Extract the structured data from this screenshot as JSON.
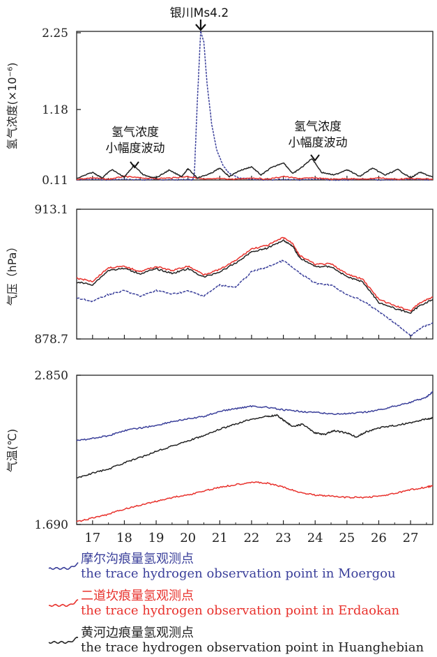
{
  "chart_data": [
    {
      "type": "line",
      "ylabel": "氢气浓度(×10⁻⁶)",
      "ylim": [
        0.11,
        2.25
      ],
      "yticks": [
        "0.11",
        "1.18",
        "2.25"
      ],
      "xlim": [
        16.5,
        27.7
      ],
      "annotations": [
        {
          "text": "银川Ms4.2",
          "x": 20.4,
          "y": 2.25
        },
        {
          "text": "氢气浓度\n小幅度波动",
          "x": 18.4,
          "y": 0.13
        },
        {
          "text": "氢气浓度\n小幅度波动",
          "x": 23.9,
          "y": 0.38
        }
      ],
      "series": [
        {
          "name": "摩尔沟痕量氢观测点",
          "color": "#3a3f9a",
          "x": [
            16.5,
            17.0,
            17.5,
            18.0,
            18.5,
            19.0,
            19.5,
            20.0,
            20.15,
            20.2,
            20.3,
            20.4,
            20.5,
            20.6,
            20.75,
            20.9,
            21.1,
            21.3,
            21.6,
            22.0,
            22.5,
            23.0,
            23.5,
            24.0,
            24.5,
            25.0,
            25.5,
            26.0,
            26.5,
            27.0,
            27.7
          ],
          "values": [
            0.11,
            0.12,
            0.11,
            0.12,
            0.11,
            0.12,
            0.11,
            0.12,
            0.11,
            0.18,
            1.3,
            2.25,
            2.1,
            1.5,
            0.9,
            0.55,
            0.32,
            0.2,
            0.14,
            0.12,
            0.11,
            0.12,
            0.11,
            0.12,
            0.11,
            0.11,
            0.12,
            0.11,
            0.11,
            0.12,
            0.11
          ]
        },
        {
          "name": "二道坎痕量氢观测点",
          "color": "#e8312c",
          "x": [
            16.5,
            17.0,
            17.5,
            18.0,
            18.5,
            19.0,
            19.5,
            20.0,
            20.5,
            21.0,
            21.5,
            22.0,
            22.5,
            23.0,
            23.5,
            24.0,
            24.5,
            25.0,
            25.5,
            26.0,
            26.5,
            27.0,
            27.7
          ],
          "values": [
            0.12,
            0.14,
            0.12,
            0.16,
            0.14,
            0.13,
            0.14,
            0.16,
            0.12,
            0.13,
            0.12,
            0.14,
            0.12,
            0.16,
            0.13,
            0.14,
            0.12,
            0.13,
            0.12,
            0.14,
            0.12,
            0.13,
            0.12
          ]
        },
        {
          "name": "黄河边痕量氢观测点",
          "color": "#222222",
          "x": [
            16.5,
            17.0,
            17.3,
            17.6,
            18.0,
            18.3,
            18.6,
            19.0,
            19.4,
            19.8,
            20.0,
            20.3,
            20.7,
            21.0,
            21.3,
            21.6,
            22.0,
            22.3,
            22.6,
            23.0,
            23.3,
            23.6,
            23.9,
            24.2,
            24.6,
            25.0,
            25.4,
            25.8,
            26.2,
            26.6,
            27.0,
            27.3,
            27.7
          ],
          "values": [
            0.13,
            0.22,
            0.14,
            0.26,
            0.15,
            0.32,
            0.18,
            0.14,
            0.25,
            0.16,
            0.27,
            0.14,
            0.2,
            0.28,
            0.16,
            0.24,
            0.3,
            0.18,
            0.28,
            0.36,
            0.2,
            0.3,
            0.42,
            0.22,
            0.18,
            0.26,
            0.16,
            0.28,
            0.18,
            0.26,
            0.14,
            0.22,
            0.15
          ]
        }
      ]
    },
    {
      "type": "line",
      "ylabel": "气压（hPa）",
      "ylim": [
        878.7,
        913.1
      ],
      "yticks": [
        "878.7",
        "913.1"
      ],
      "xlim": [
        16.5,
        27.7
      ],
      "series": [
        {
          "name": "摩尔沟痕量氢观测点",
          "color": "#3a3f9a",
          "x": [
            16.5,
            17.0,
            17.5,
            18.0,
            18.5,
            19.0,
            19.5,
            20.0,
            20.5,
            21.0,
            21.5,
            22.0,
            22.5,
            23.0,
            23.5,
            24.0,
            24.5,
            25.0,
            25.5,
            26.0,
            26.5,
            27.0,
            27.3,
            27.7
          ],
          "values": [
            889.5,
            888.7,
            890.5,
            891.5,
            890.0,
            891.6,
            890.6,
            891.4,
            890.1,
            893.0,
            892.4,
            896.5,
            897.8,
            899.5,
            896.2,
            893.5,
            893.0,
            890.5,
            888.8,
            886.0,
            883.0,
            879.5,
            881.5,
            883.0
          ]
        },
        {
          "name": "二道坎痕量氢观测点",
          "color": "#e8312c",
          "x": [
            16.5,
            17.0,
            17.5,
            18.0,
            18.5,
            19.0,
            19.5,
            20.0,
            20.5,
            21.0,
            21.5,
            22.0,
            22.5,
            23.0,
            23.3,
            23.5,
            24.0,
            24.5,
            25.0,
            25.5,
            26.0,
            26.5,
            27.0,
            27.3,
            27.7
          ],
          "values": [
            894.8,
            894.0,
            897.6,
            897.9,
            896.6,
            897.9,
            896.8,
            898.0,
            895.8,
            897.1,
            899.5,
            902.6,
            903.5,
            905.6,
            904.0,
            900.9,
            898.5,
            898.6,
            895.9,
            894.5,
            889.2,
            887.5,
            886.2,
            888.3,
            889.8
          ]
        },
        {
          "name": "黄河边痕量氢观测点",
          "color": "#222222",
          "x": [
            16.5,
            17.0,
            17.5,
            18.0,
            18.5,
            19.0,
            19.5,
            20.0,
            20.5,
            21.0,
            21.5,
            22.0,
            22.5,
            23.0,
            23.3,
            23.5,
            24.0,
            24.5,
            25.0,
            25.5,
            26.0,
            26.5,
            27.0,
            27.3,
            27.7
          ],
          "values": [
            893.8,
            893.1,
            896.9,
            897.4,
            896.0,
            897.3,
            896.1,
            897.3,
            895.1,
            896.5,
            898.8,
            901.8,
            902.8,
            904.9,
            903.3,
            900.3,
            897.9,
            897.9,
            895.2,
            893.8,
            888.4,
            886.8,
            885.6,
            887.6,
            889.2
          ]
        }
      ]
    },
    {
      "type": "line",
      "ylabel": "气温(℃)",
      "ylim": [
        1.69,
        2.85
      ],
      "yticks": [
        "1.690",
        "2.850"
      ],
      "xlim": [
        16.5,
        27.7
      ],
      "xticks": [
        "17",
        "18",
        "19",
        "20",
        "21",
        "22",
        "23",
        "24",
        "25",
        "26",
        "27"
      ],
      "series": [
        {
          "name": "摩尔沟痕量氢观测点",
          "color": "#3a3f9a",
          "x": [
            16.5,
            17.0,
            17.5,
            18.0,
            18.5,
            19.0,
            19.5,
            20.0,
            20.5,
            21.0,
            21.5,
            22.0,
            22.5,
            23.0,
            23.5,
            24.0,
            24.5,
            25.0,
            25.5,
            26.0,
            26.5,
            27.0,
            27.5,
            27.7
          ],
          "values": [
            2.34,
            2.36,
            2.38,
            2.42,
            2.44,
            2.46,
            2.49,
            2.51,
            2.53,
            2.57,
            2.59,
            2.61,
            2.6,
            2.58,
            2.57,
            2.56,
            2.55,
            2.55,
            2.56,
            2.58,
            2.61,
            2.64,
            2.68,
            2.72
          ]
        },
        {
          "name": "二道坎痕量氢观测点",
          "color": "#e8312c",
          "x": [
            16.5,
            17.0,
            17.5,
            18.0,
            18.5,
            19.0,
            19.5,
            20.0,
            20.5,
            21.0,
            21.5,
            22.0,
            22.5,
            23.0,
            23.5,
            24.0,
            24.5,
            25.0,
            25.5,
            26.0,
            26.5,
            27.0,
            27.5,
            27.7
          ],
          "values": [
            1.71,
            1.74,
            1.77,
            1.81,
            1.84,
            1.87,
            1.9,
            1.92,
            1.95,
            1.98,
            2.0,
            2.02,
            2.01,
            1.98,
            1.94,
            1.92,
            1.91,
            1.9,
            1.9,
            1.91,
            1.93,
            1.96,
            1.98,
            1.99
          ]
        },
        {
          "name": "黄河边痕量氢观测点",
          "color": "#222222",
          "x": [
            16.5,
            17.0,
            17.5,
            18.0,
            18.5,
            19.0,
            19.5,
            20.0,
            20.5,
            21.0,
            21.5,
            22.0,
            22.5,
            22.8,
            23.0,
            23.3,
            23.6,
            24.0,
            24.3,
            24.6,
            25.0,
            25.3,
            25.6,
            26.0,
            26.5,
            27.0,
            27.5,
            27.7
          ],
          "values": [
            2.05,
            2.09,
            2.12,
            2.17,
            2.21,
            2.26,
            2.3,
            2.34,
            2.38,
            2.43,
            2.47,
            2.51,
            2.53,
            2.54,
            2.5,
            2.45,
            2.47,
            2.4,
            2.39,
            2.42,
            2.4,
            2.37,
            2.41,
            2.44,
            2.46,
            2.48,
            2.51,
            2.52
          ]
        }
      ]
    }
  ],
  "legend": [
    {
      "zh": "摩尔沟痕量氢观测点",
      "en": "the trace hydrogen observation point in Moergou",
      "color": "#3a3f9a"
    },
    {
      "zh": "二道坎痕量氢观测点",
      "en": "the trace hydrogen observation point in Erdaokan",
      "color": "#e8312c"
    },
    {
      "zh": "黄河边痕量氢观测点",
      "en": "the trace hydrogen observation point in Huanghebian",
      "color": "#222222"
    }
  ]
}
